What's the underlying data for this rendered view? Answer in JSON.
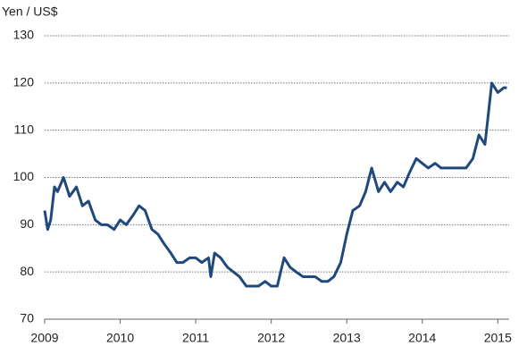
{
  "chart_data": {
    "type": "line",
    "title": "Yen / US$",
    "x": [
      2009.0,
      2009.04,
      2009.08,
      2009.13,
      2009.17,
      2009.25,
      2009.33,
      2009.42,
      2009.5,
      2009.58,
      2009.67,
      2009.75,
      2009.83,
      2009.92,
      2010.0,
      2010.08,
      2010.17,
      2010.25,
      2010.33,
      2010.42,
      2010.5,
      2010.58,
      2010.67,
      2010.75,
      2010.83,
      2010.92,
      2011.0,
      2011.08,
      2011.17,
      2011.2,
      2011.25,
      2011.33,
      2011.42,
      2011.5,
      2011.58,
      2011.67,
      2011.75,
      2011.83,
      2011.92,
      2012.0,
      2012.08,
      2012.17,
      2012.25,
      2012.33,
      2012.42,
      2012.5,
      2012.58,
      2012.67,
      2012.75,
      2012.83,
      2012.92,
      2013.0,
      2013.08,
      2013.17,
      2013.25,
      2013.33,
      2013.42,
      2013.5,
      2013.58,
      2013.67,
      2013.75,
      2013.83,
      2013.92,
      2014.0,
      2014.08,
      2014.17,
      2014.25,
      2014.33,
      2014.42,
      2014.5,
      2014.58,
      2014.67,
      2014.75,
      2014.83,
      2014.92,
      2015.0,
      2015.08,
      2015.12
    ],
    "series": [
      {
        "name": "Yen / US$",
        "color": "#1f497d",
        "values": [
          93,
          89,
          91,
          98,
          97,
          100,
          96,
          98,
          94,
          95,
          91,
          90,
          90,
          89,
          91,
          90,
          92,
          94,
          93,
          89,
          88,
          86,
          84,
          82,
          82,
          83,
          83,
          82,
          83,
          79,
          84,
          83,
          81,
          80,
          79,
          77,
          77,
          77,
          78,
          77,
          77,
          83,
          81,
          80,
          79,
          79,
          79,
          78,
          78,
          79,
          82,
          88,
          93,
          94,
          97,
          102,
          97,
          99,
          97,
          99,
          98,
          101,
          104,
          103,
          102,
          103,
          102,
          102,
          102,
          102,
          102,
          104,
          109,
          107,
          120,
          118,
          119,
          119
        ]
      }
    ],
    "xlim": [
      2009,
      2015.15
    ],
    "xticks": [
      2009,
      2010,
      2011,
      2012,
      2013,
      2014,
      2015
    ],
    "ylim": [
      70,
      130
    ],
    "yticks": [
      70,
      80,
      90,
      100,
      110,
      120,
      130
    ],
    "grid": true
  }
}
